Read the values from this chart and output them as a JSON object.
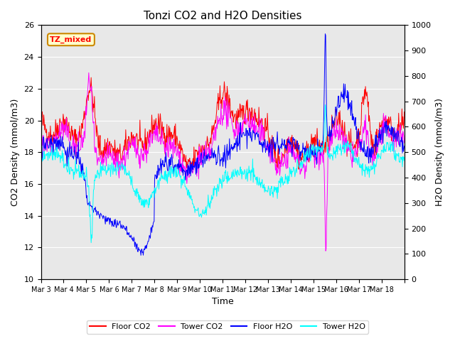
{
  "title": "Tonzi CO2 and H2O Densities",
  "xlabel": "Time",
  "ylabel_left": "CO2 Density (mmol/m3)",
  "ylabel_right": "H2O Density (mmol/m3)",
  "ylim_left": [
    10,
    26
  ],
  "ylim_right": [
    0,
    1000
  ],
  "annotation": "TZ_mixed",
  "legend_labels": [
    "Floor CO2",
    "Tower CO2",
    "Floor H2O",
    "Tower H2O"
  ],
  "colors": [
    "red",
    "magenta",
    "blue",
    "cyan"
  ],
  "xtick_labels": [
    "Mar 3",
    "Mar 4",
    "Mar 5",
    "Mar 6",
    "Mar 7",
    "Mar 8",
    "Mar 9",
    "Mar 10",
    "Mar 11",
    "Mar 12",
    "Mar 13",
    "Mar 14",
    "Mar 15",
    "Mar 16",
    "Mar 17",
    "Mar 18"
  ],
  "n_days": 16,
  "pts_per_day": 48,
  "background_color": "#e8e8e8",
  "annotation_bg": "#ffffcc",
  "annotation_border": "#cc8800",
  "figsize": [
    6.4,
    4.8
  ],
  "dpi": 100
}
